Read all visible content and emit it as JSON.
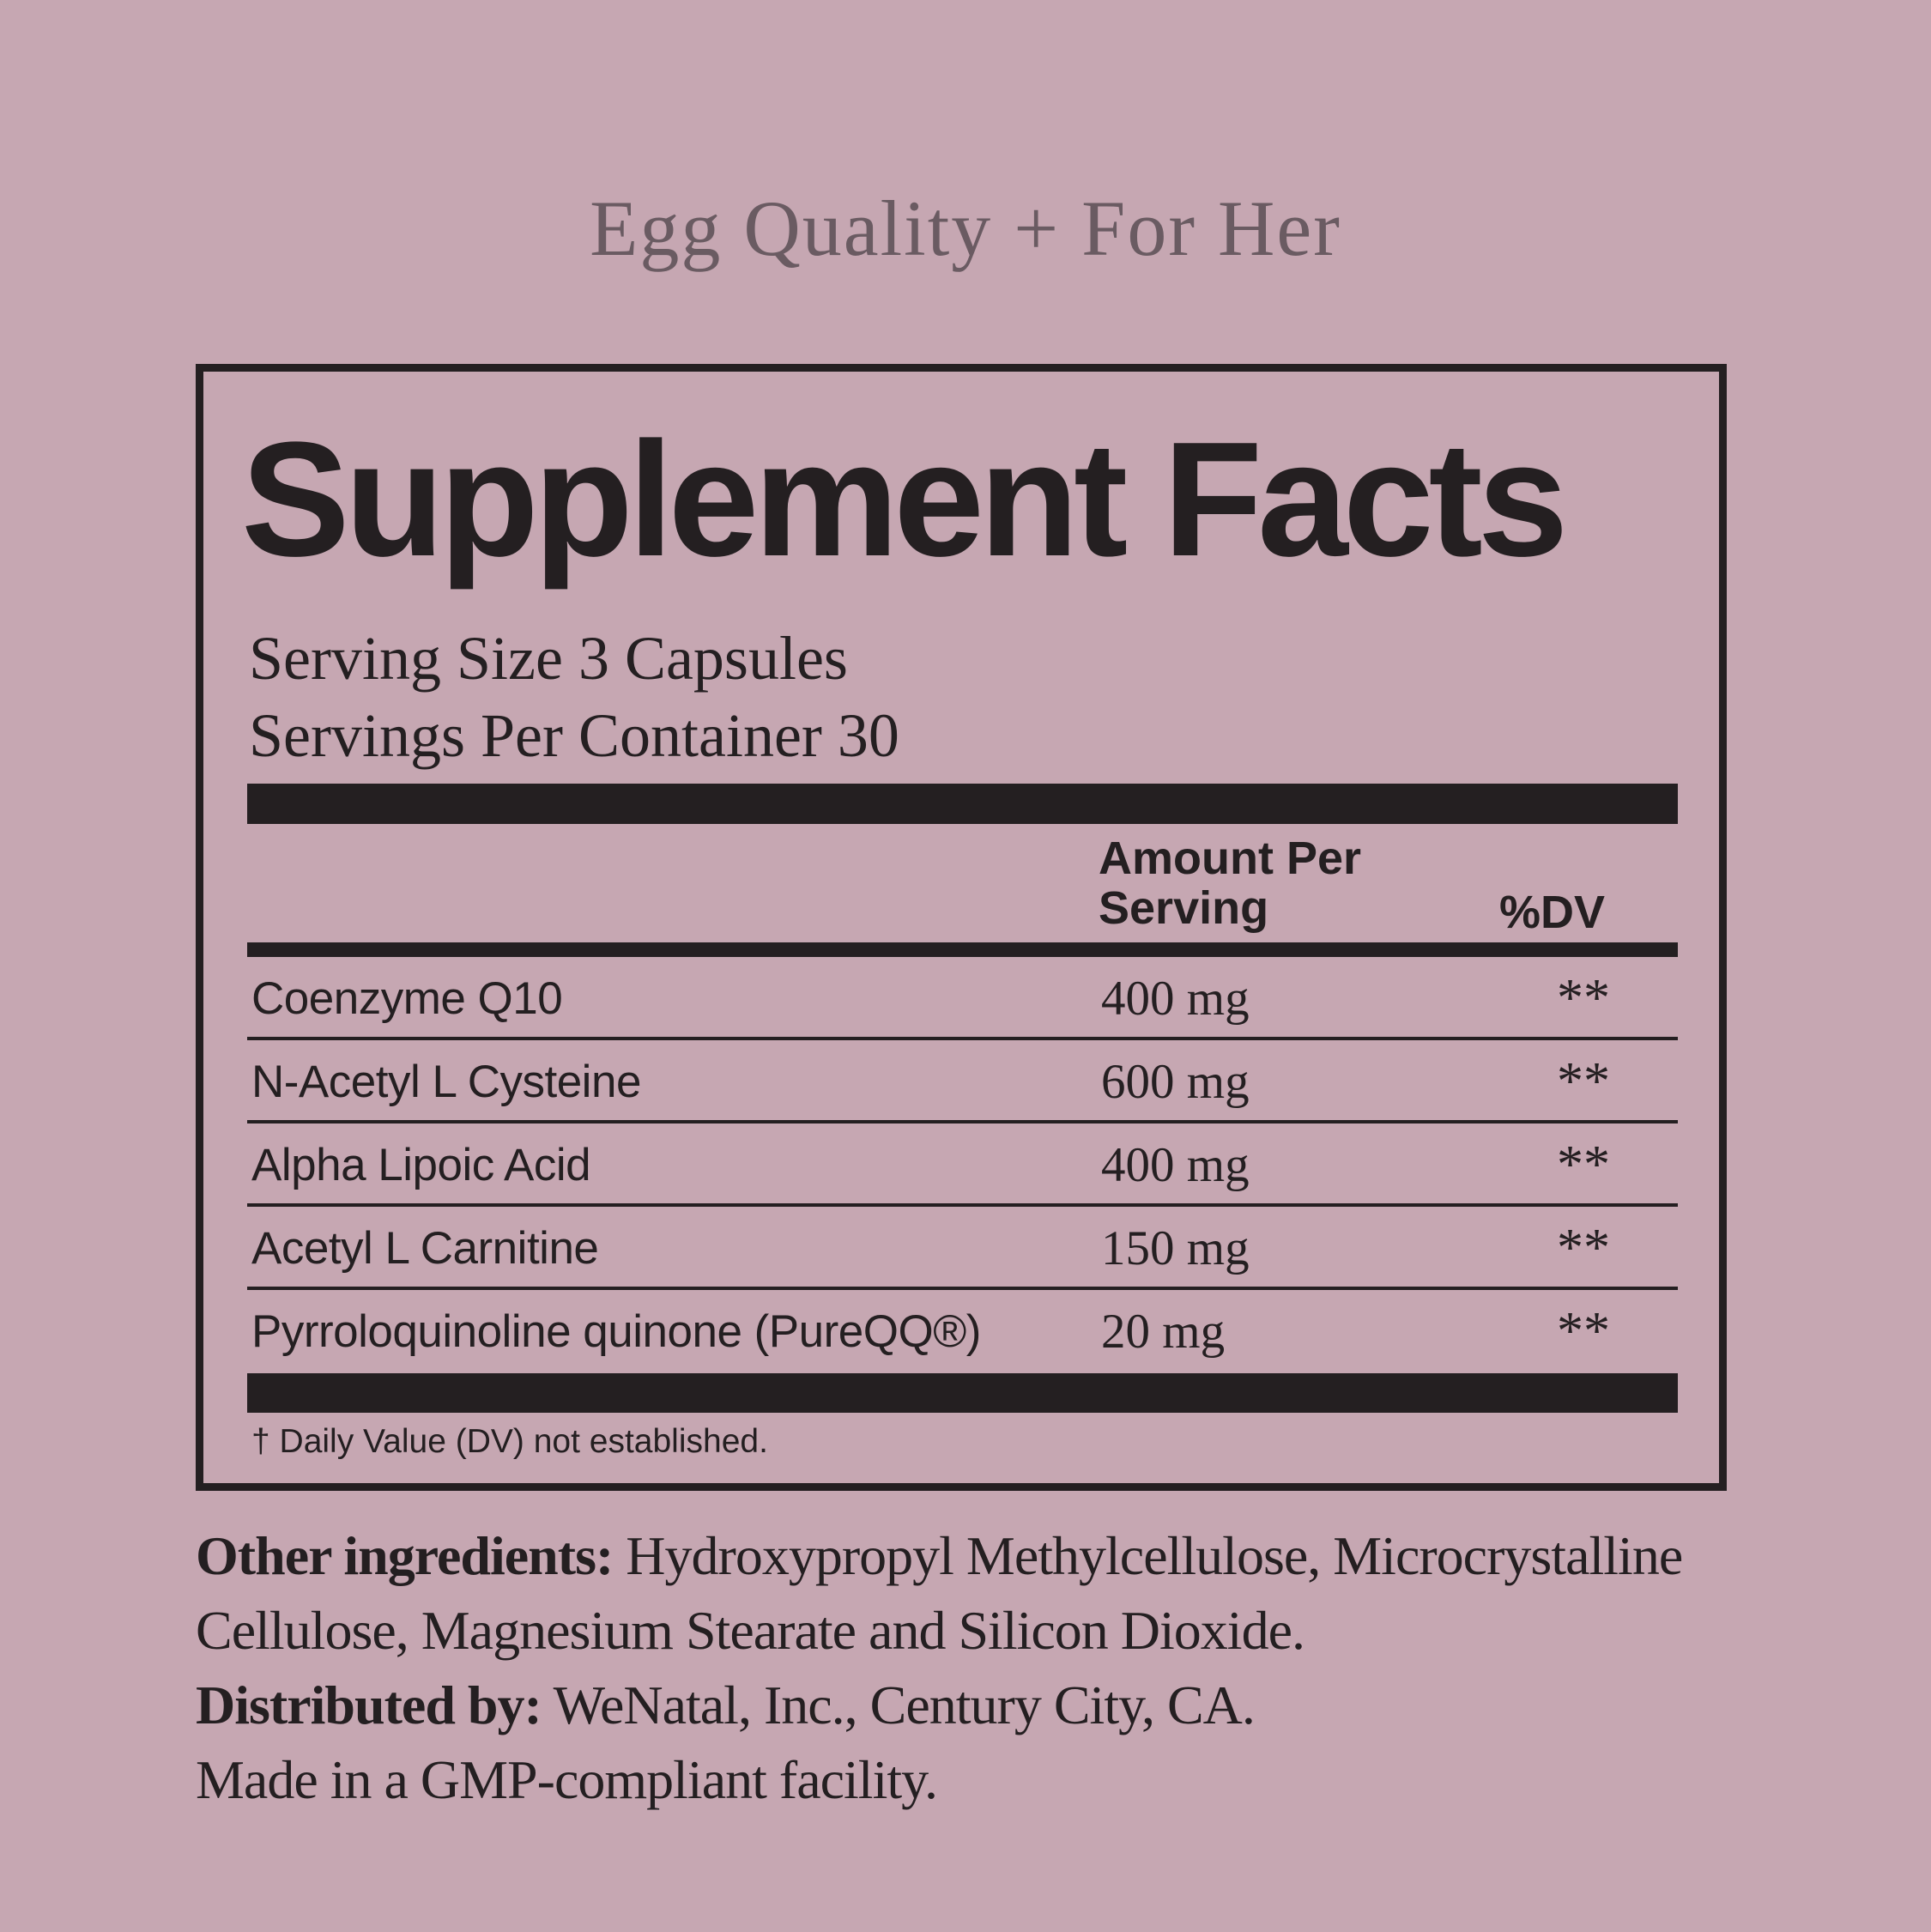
{
  "page": {
    "title": "Egg Quality + For Her"
  },
  "panel": {
    "heading": "Supplement Facts",
    "serving_size": "Serving Size 3 Capsules",
    "servings_per_container": "Servings Per Container 30",
    "columns": {
      "amount": "Amount Per Serving",
      "dv": "%DV"
    },
    "rows": [
      {
        "name": "Coenzyme Q10",
        "amount": "400 mg",
        "dv": "**"
      },
      {
        "name": "N-Acetyl L Cysteine",
        "amount": "600 mg",
        "dv": "**"
      },
      {
        "name": "Alpha Lipoic Acid",
        "amount": "400 mg",
        "dv": "**"
      },
      {
        "name": "Acetyl L Carnitine",
        "amount": "150 mg",
        "dv": "**"
      },
      {
        "name": "Pyrroloquinoline quinone (PureQQ®)",
        "amount": "20 mg",
        "dv": "**"
      }
    ],
    "footnote": "† Daily Value (DV) not established."
  },
  "footer": {
    "lines": [
      {
        "bold": "Other ingredients:",
        "rest": " Hydroxypropyl Methylcellulose, Microcrystalline"
      },
      {
        "bold": "",
        "rest": "Cellulose, Magnesium Stearate and Silicon Dioxide."
      },
      {
        "bold": "Distributed by:",
        "rest": " WeNatal, Inc., Century City, CA."
      },
      {
        "bold": "",
        "rest": "Made in a GMP-compliant facility."
      }
    ]
  },
  "colors": {
    "background": "#c6a7b2",
    "ink": "#241f21",
    "title_gray": "#6a5b62"
  }
}
